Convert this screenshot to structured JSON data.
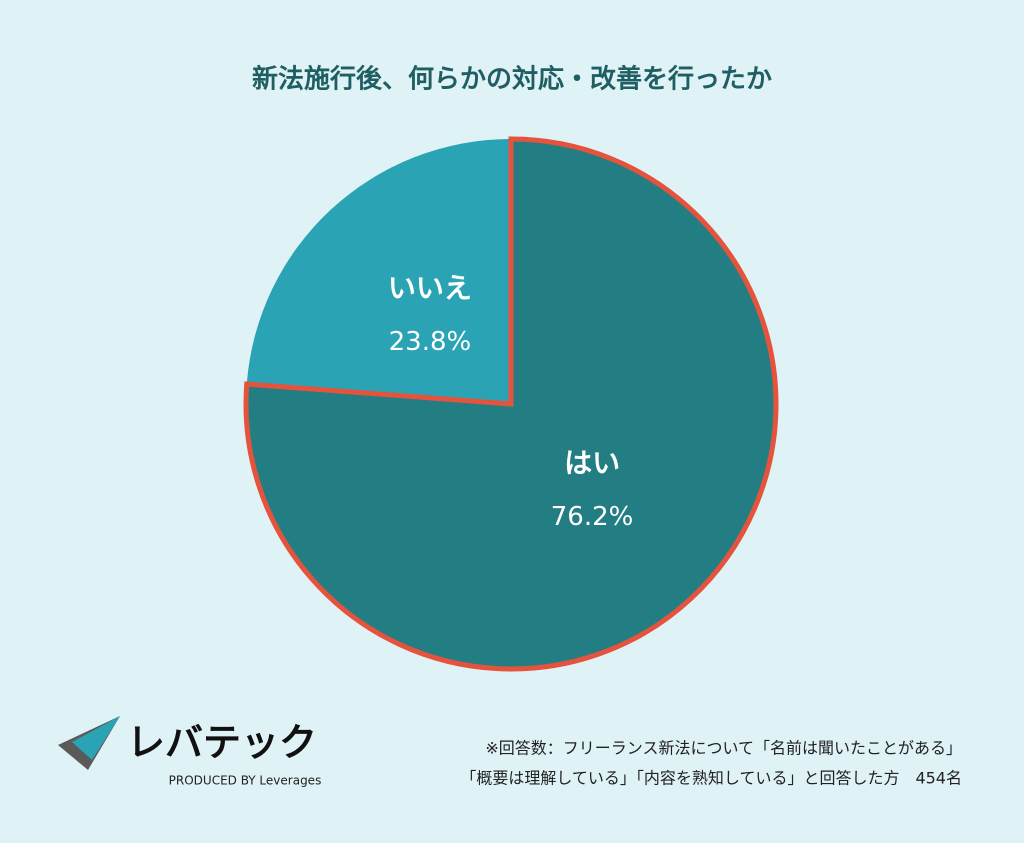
{
  "chart_data": {
    "type": "pie",
    "title": "新法施行後、何らかの対応・改善を行ったか",
    "categories": [
      "はい",
      "いいえ"
    ],
    "values": [
      76.2,
      23.8
    ],
    "value_labels": [
      "76.2%",
      "23.8%"
    ],
    "colors": [
      "#237e84",
      "#2aa3b5"
    ],
    "highlight": "はい",
    "highlight_color": "#e5533d"
  },
  "logo": {
    "name": "レバテック",
    "tagline": "PRODUCED BY Leverages"
  },
  "footnote": [
    "※回答数：フリーランス新法について「名前は聞いたことがある」",
    "「概要は理解している」「内容を熟知している」と回答した方　454名"
  ]
}
